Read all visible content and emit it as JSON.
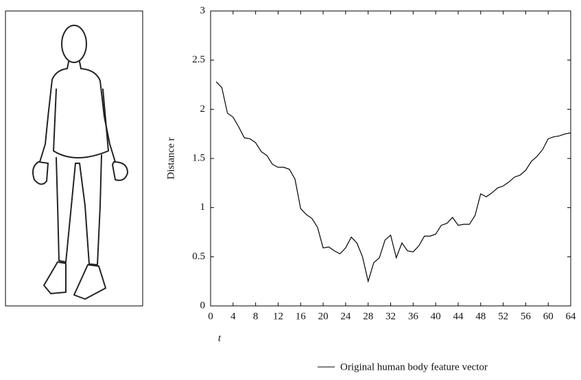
{
  "chart_data": {
    "type": "line",
    "x_label": "t",
    "y_label": "Distance r",
    "x": [
      1,
      2,
      3,
      4,
      5,
      6,
      7,
      8,
      9,
      10,
      11,
      12,
      13,
      14,
      15,
      16,
      17,
      18,
      19,
      20,
      21,
      22,
      23,
      24,
      25,
      26,
      27,
      28,
      29,
      30,
      31,
      32,
      33,
      34,
      35,
      36,
      37,
      38,
      39,
      40,
      41,
      42,
      43,
      44,
      45,
      46,
      47,
      48,
      49,
      50,
      51,
      52,
      53,
      54,
      55,
      56,
      57,
      58,
      59,
      60,
      61,
      62,
      63,
      64
    ],
    "series": [
      {
        "name": "Original human body feature vector",
        "color": "#000000",
        "values": [
          2.28,
          2.22,
          1.96,
          1.92,
          1.82,
          1.71,
          1.7,
          1.66,
          1.57,
          1.53,
          1.44,
          1.41,
          1.41,
          1.39,
          1.29,
          0.99,
          0.93,
          0.89,
          0.8,
          0.59,
          0.6,
          0.56,
          0.53,
          0.59,
          0.7,
          0.64,
          0.5,
          0.25,
          0.44,
          0.49,
          0.67,
          0.72,
          0.49,
          0.64,
          0.56,
          0.55,
          0.61,
          0.71,
          0.71,
          0.73,
          0.82,
          0.84,
          0.9,
          0.82,
          0.83,
          0.83,
          0.92,
          1.14,
          1.11,
          1.15,
          1.2,
          1.22,
          1.26,
          1.31,
          1.33,
          1.38,
          1.47,
          1.52,
          1.59,
          1.7,
          1.72,
          1.73,
          1.75,
          1.76
        ]
      }
    ],
    "xlim": [
      0,
      64
    ],
    "xticks": [
      0,
      4,
      8,
      12,
      16,
      20,
      24,
      28,
      32,
      36,
      40,
      44,
      48,
      52,
      56,
      60,
      64
    ],
    "ylim": [
      0,
      3
    ],
    "yticks": [
      0,
      0.5,
      1,
      1.5,
      2,
      2.5,
      3
    ]
  }
}
